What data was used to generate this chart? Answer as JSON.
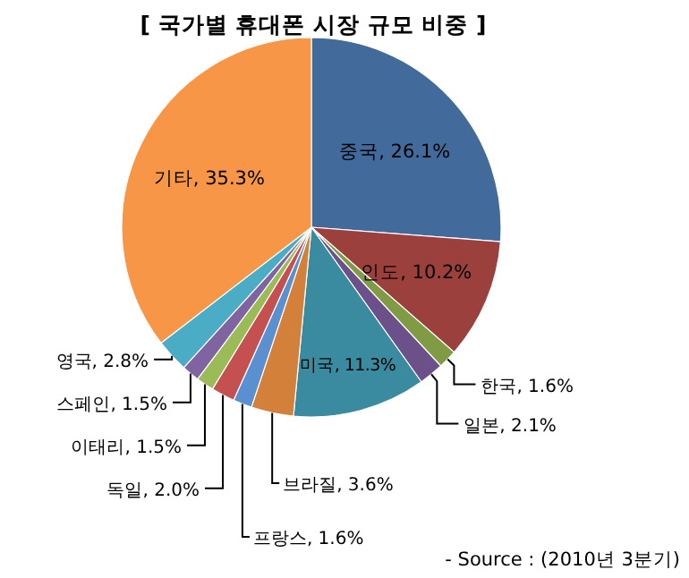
{
  "chart_data": {
    "type": "pie",
    "title": "[ 국가별 휴대폰 시장 규모 비중 ]",
    "categories": [
      "중국",
      "인도",
      "한국",
      "일본",
      "미국",
      "브라질",
      "프랑스",
      "독일",
      "이태리",
      "스페인",
      "영국",
      "기타"
    ],
    "values": [
      26.1,
      10.2,
      1.6,
      2.1,
      11.3,
      3.6,
      1.6,
      2.0,
      1.5,
      1.5,
      2.8,
      35.3
    ],
    "value_labels": [
      "26.1%",
      "10.2%",
      "1.6%",
      "2.1%",
      "11.3%",
      "3.6%",
      "1.6%",
      "2.0%",
      "1.5%",
      "1.5%",
      "2.8%",
      "35.3%"
    ],
    "colors": [
      "#426a9a",
      "#9c403e",
      "#7f9c45",
      "#6b5089",
      "#3a8ba0",
      "#d2803a",
      "#5a8fd0",
      "#c4504f",
      "#9bbb59",
      "#8064a2",
      "#4bacc6",
      "#f79646"
    ],
    "annotations": [
      "- Source : (2010년 3분기)"
    ]
  }
}
